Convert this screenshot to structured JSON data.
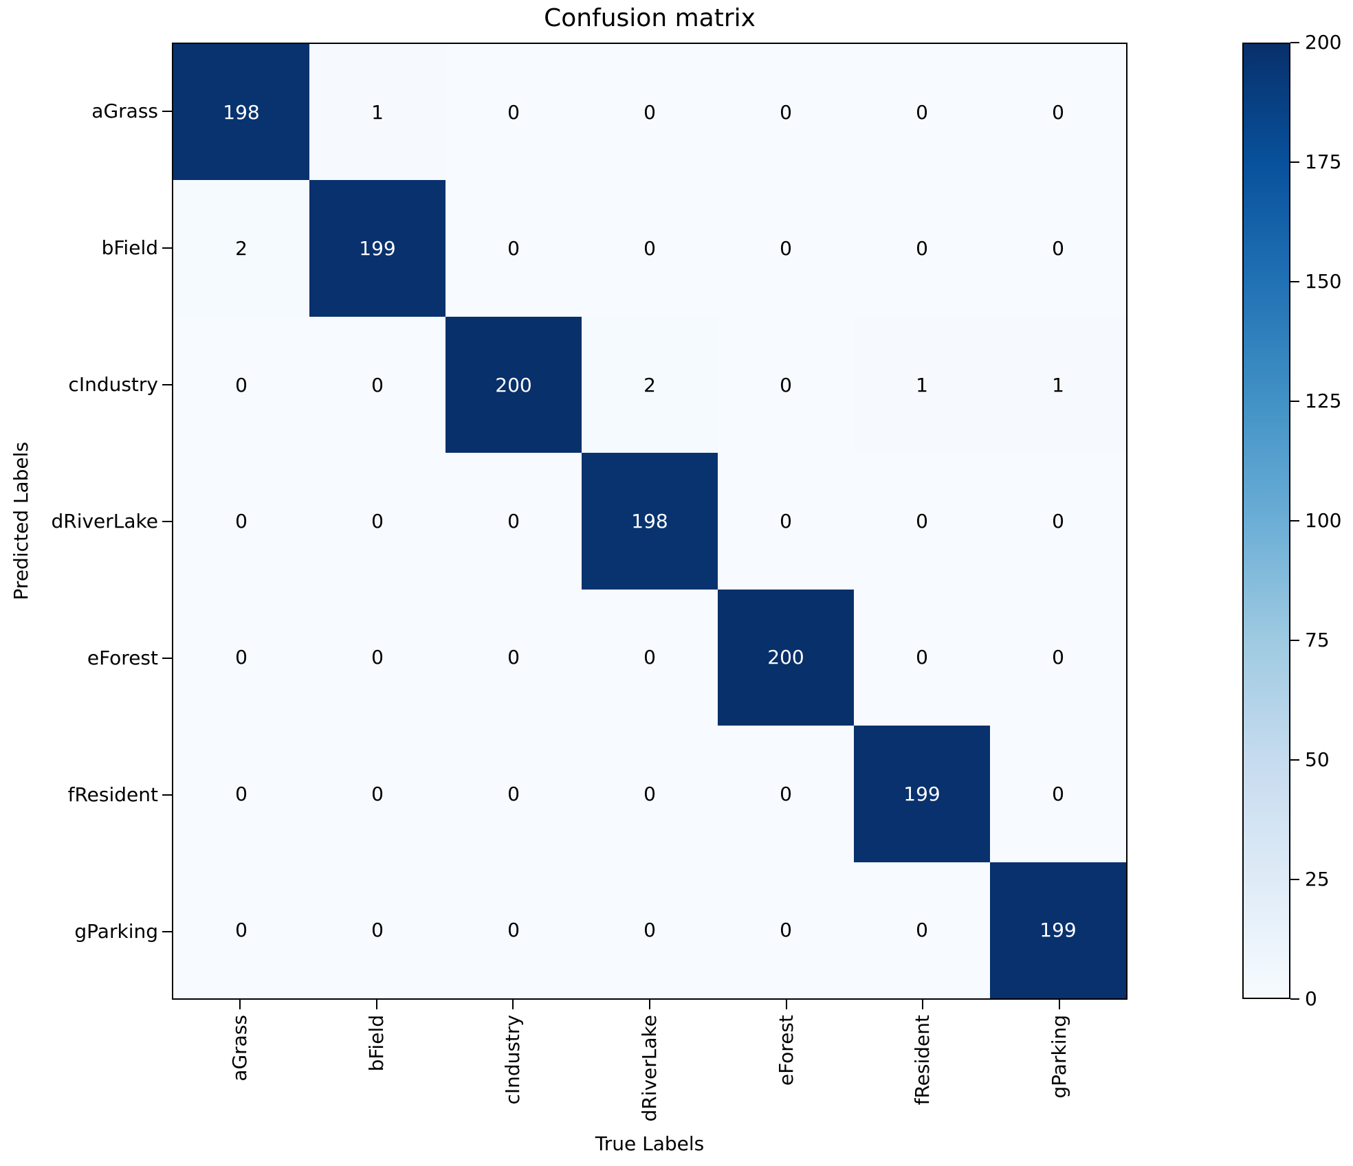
{
  "figure": {
    "background": "#ffffff",
    "spine_color": "#000000",
    "text_color": "#000000"
  },
  "chart_data": {
    "type": "heatmap",
    "title": "Confusion matrix",
    "xlabel": "True Labels",
    "ylabel": "Predicted Labels",
    "x_categories": [
      "aGrass",
      "bField",
      "cIndustry",
      "dRiverLake",
      "eForest",
      "fResident",
      "gParking"
    ],
    "y_categories": [
      "aGrass",
      "bField",
      "cIndustry",
      "dRiverLake",
      "eForest",
      "fResident",
      "gParking"
    ],
    "matrix": [
      [
        198,
        1,
        0,
        0,
        0,
        0,
        0
      ],
      [
        2,
        199,
        0,
        0,
        0,
        0,
        0
      ],
      [
        0,
        0,
        200,
        2,
        0,
        1,
        1
      ],
      [
        0,
        0,
        0,
        198,
        0,
        0,
        0
      ],
      [
        0,
        0,
        0,
        0,
        200,
        0,
        0
      ],
      [
        0,
        0,
        0,
        0,
        0,
        199,
        0
      ],
      [
        0,
        0,
        0,
        0,
        0,
        0,
        199
      ]
    ],
    "vmin": 0,
    "vmax": 200,
    "colorbar_ticks": [
      0,
      25,
      50,
      75,
      100,
      125,
      150,
      175,
      200
    ],
    "colormap_name": "Blues",
    "colormap_stops": [
      "#f7fbff",
      "#deebf7",
      "#c6dbef",
      "#9ecae1",
      "#6baed6",
      "#4292c6",
      "#2171b5",
      "#08519c",
      "#08306b"
    ],
    "cell_text_threshold": 100,
    "cell_text_color_low": "#000000",
    "cell_text_color_high": "#ffffff",
    "grid": false,
    "legend_position": "right-colorbar"
  }
}
